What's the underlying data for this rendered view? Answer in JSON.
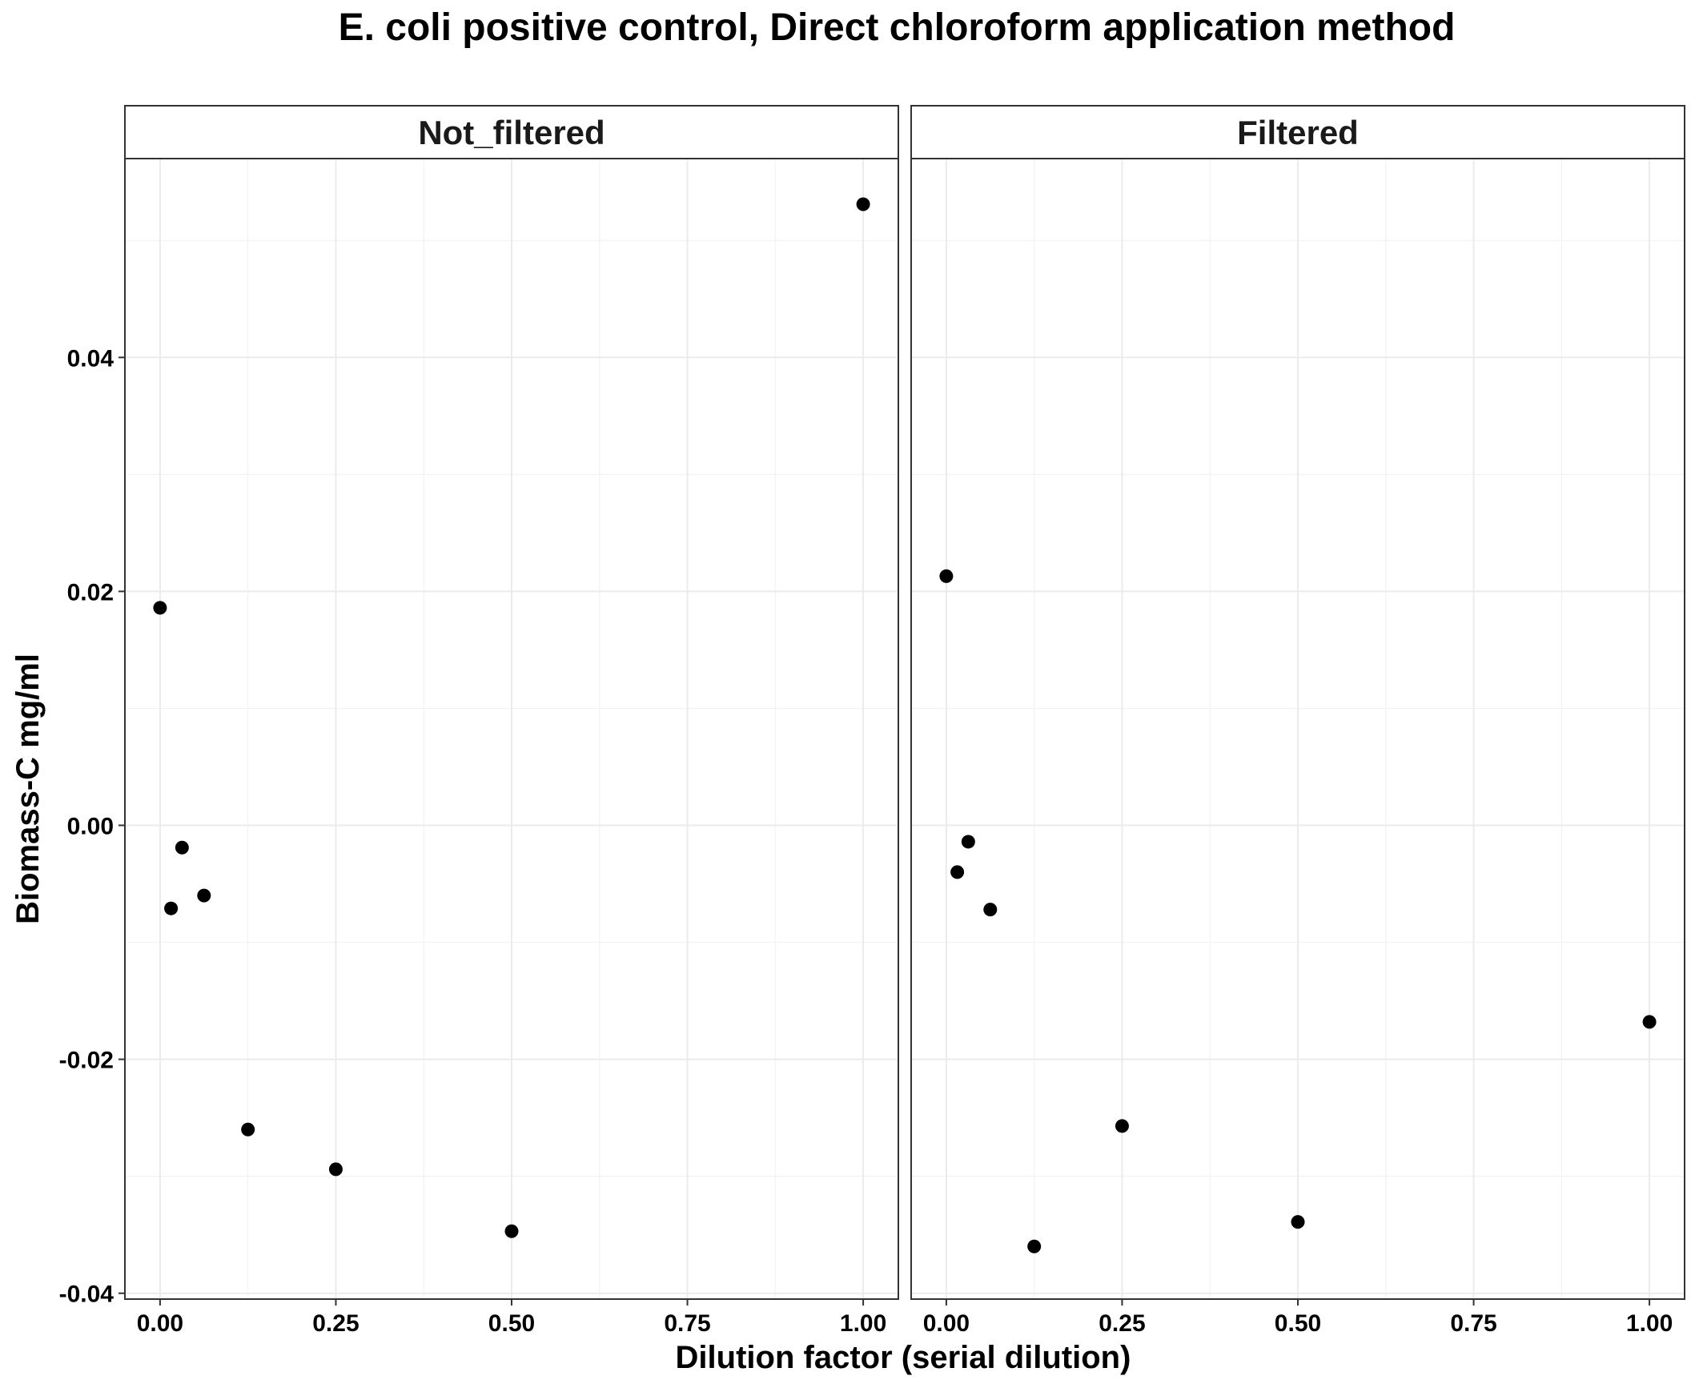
{
  "chart_data": {
    "type": "scatter",
    "title": "E. coli positive control, Direct chloroform application method",
    "xlabel": "Dilution factor (serial dilution)",
    "ylabel": "Biomass-C mg/ml",
    "xlim": [
      -0.05,
      1.05
    ],
    "ylim": [
      -0.0405,
      0.057
    ],
    "x_ticks": [
      0.0,
      0.25,
      0.5,
      0.75,
      1.0
    ],
    "x_tick_labels": [
      "0.00",
      "0.25",
      "0.50",
      "0.75",
      "1.00"
    ],
    "y_ticks": [
      -0.04,
      -0.02,
      0.0,
      0.02,
      0.04
    ],
    "y_tick_labels": [
      "-0.04",
      "-0.02",
      "0.00",
      "0.02",
      "0.04"
    ],
    "grid": true,
    "point_color": "#000000",
    "panels": [
      {
        "strip": "Not_filtered",
        "points": [
          {
            "x": 0.0,
            "y": 0.0186
          },
          {
            "x": 0.0156,
            "y": -0.0071
          },
          {
            "x": 0.03125,
            "y": -0.0019
          },
          {
            "x": 0.0625,
            "y": -0.006
          },
          {
            "x": 0.125,
            "y": -0.026
          },
          {
            "x": 0.25,
            "y": -0.0294
          },
          {
            "x": 0.5,
            "y": -0.0347
          },
          {
            "x": 1.0,
            "y": 0.0531
          }
        ]
      },
      {
        "strip": "Filtered",
        "points": [
          {
            "x": 0.0,
            "y": 0.0213
          },
          {
            "x": 0.0156,
            "y": -0.004
          },
          {
            "x": 0.03125,
            "y": -0.0014
          },
          {
            "x": 0.0625,
            "y": -0.0072
          },
          {
            "x": 0.125,
            "y": -0.036
          },
          {
            "x": 0.25,
            "y": -0.0257
          },
          {
            "x": 0.5,
            "y": -0.0339
          },
          {
            "x": 1.0,
            "y": -0.0168
          }
        ]
      }
    ]
  }
}
